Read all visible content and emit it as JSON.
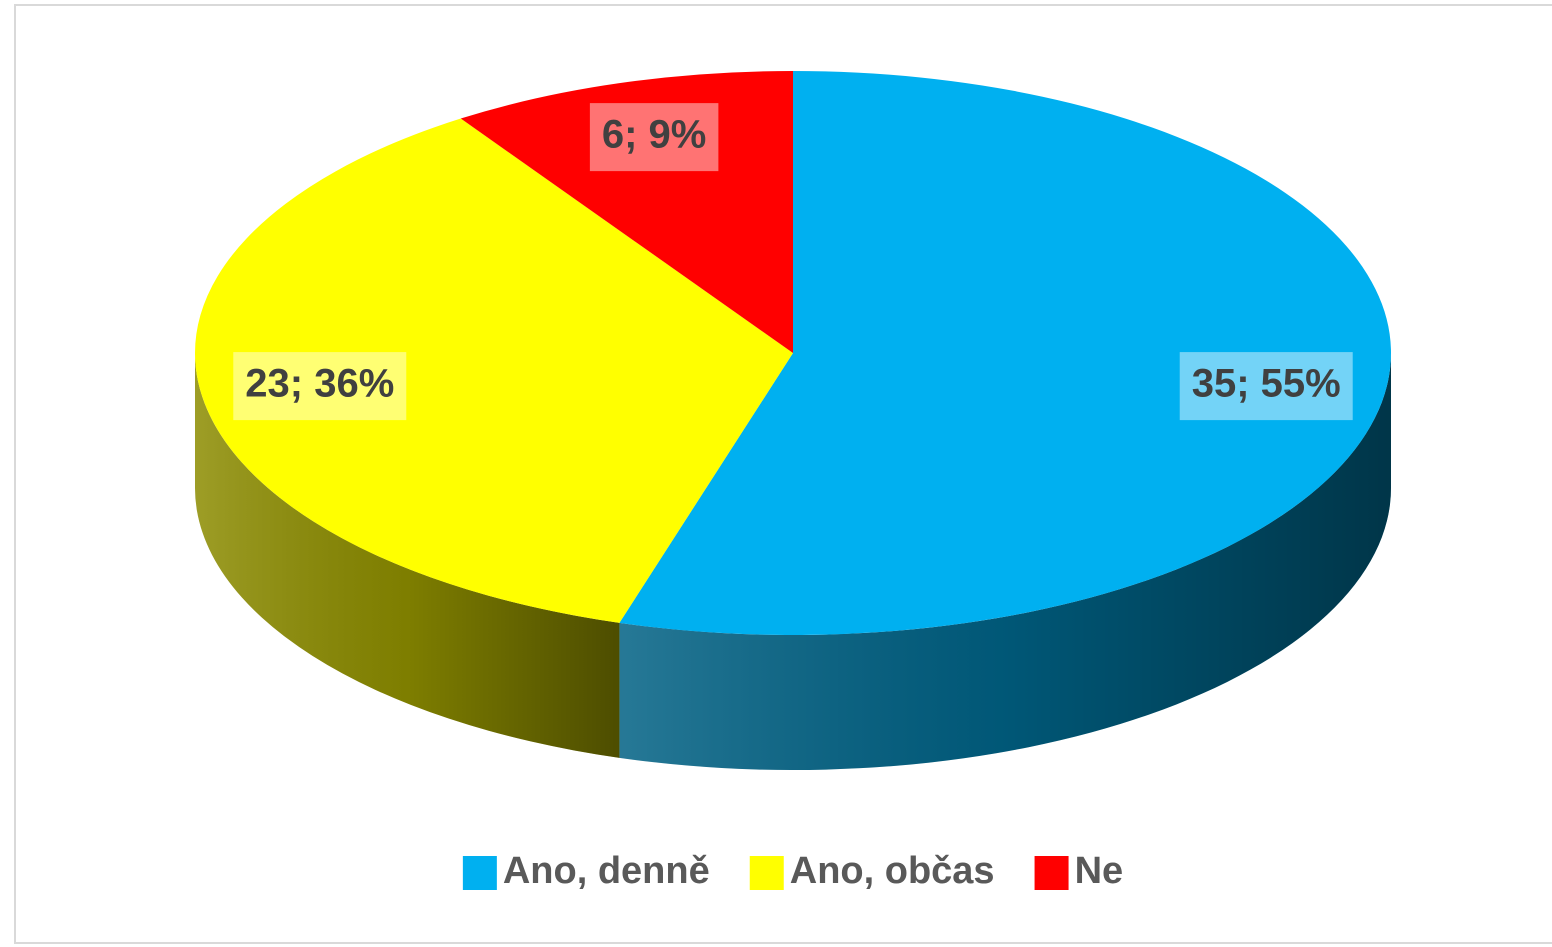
{
  "chart_data": {
    "type": "pie",
    "three_d": true,
    "categories": [
      "Ano, denně",
      "Ano, občas",
      "Ne"
    ],
    "values": [
      35,
      23,
      6
    ],
    "value_labels": [
      "35; 55%",
      "23; 36%",
      "6; 9%"
    ],
    "colors": [
      "#00b0f0",
      "#ffff00",
      "#ff0000"
    ],
    "legend": "bottom"
  }
}
